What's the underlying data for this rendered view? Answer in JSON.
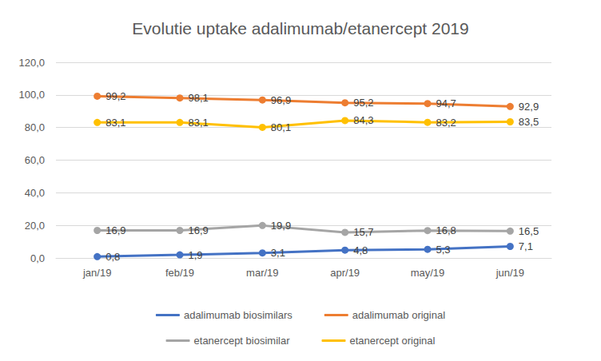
{
  "chart_data": {
    "type": "line",
    "title": "Evolutie uptake adalimumab/etanercept 2019",
    "categories": [
      "jan/19",
      "feb/19",
      "mar/19",
      "apr/19",
      "may/19",
      "jun/19"
    ],
    "series": [
      {
        "name": "adalimumab biosimilars",
        "color": "#4472c4",
        "values": [
          0.8,
          1.9,
          3.1,
          4.8,
          5.3,
          7.1
        ],
        "value_labels": [
          "0,8",
          "1,9",
          "3,1",
          "4,8",
          "5,3",
          "7,1"
        ]
      },
      {
        "name": "adalimumab original",
        "color": "#ed7d31",
        "values": [
          99.2,
          98.1,
          96.9,
          95.2,
          94.7,
          92.9
        ],
        "value_labels": [
          "99,2",
          "98,1",
          "96,9",
          "95,2",
          "94,7",
          "92,9"
        ]
      },
      {
        "name": "etanercept biosimilar",
        "color": "#a5a5a5",
        "values": [
          16.9,
          16.9,
          19.9,
          15.7,
          16.8,
          16.5
        ],
        "value_labels": [
          "16,9",
          "16,9",
          "19,9",
          "15,7",
          "16,8",
          "16,5"
        ]
      },
      {
        "name": "etanercept original",
        "color": "#ffc000",
        "values": [
          83.1,
          83.1,
          80.1,
          84.3,
          83.2,
          83.5
        ],
        "value_labels": [
          "83,1",
          "83,1",
          "80,1",
          "84,3",
          "83,2",
          "83,5"
        ]
      }
    ],
    "ylim": [
      0,
      120
    ],
    "yticks": [
      {
        "value": 0,
        "label": "0,0"
      },
      {
        "value": 20,
        "label": "20,0"
      },
      {
        "value": 40,
        "label": "40,0"
      },
      {
        "value": 60,
        "label": "60,0"
      },
      {
        "value": 80,
        "label": "80,0"
      },
      {
        "value": 100,
        "label": "100,0"
      },
      {
        "value": 120,
        "label": "120,0"
      }
    ],
    "grid": true,
    "legend": "bottom",
    "marker": "circle",
    "data_labels": true
  }
}
